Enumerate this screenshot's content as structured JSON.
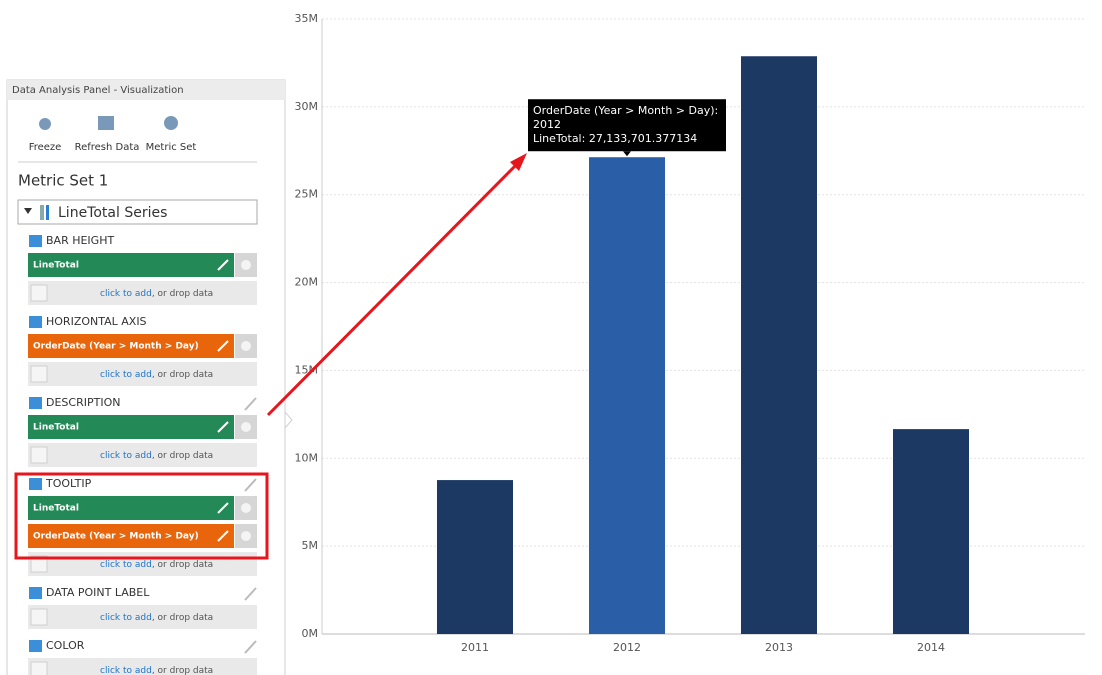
{
  "panel": {
    "header": "Data Analysis Panel - Visualization",
    "toolbar": [
      "Freeze",
      "Refresh Data",
      "Metric Set"
    ],
    "metric_set": "Metric Set 1",
    "series_dropdown": "LineTotal Series",
    "add_link": "click to add",
    "add_text": ", or drop data",
    "sections": [
      {
        "title": "BAR HEIGHT",
        "fields": [
          {
            "label": "LineTotal",
            "color": "#238a57"
          }
        ]
      },
      {
        "title": "HORIZONTAL AXIS",
        "fields": [
          {
            "label": "OrderDate (Year > Month > Day)",
            "color": "#e8650c"
          }
        ]
      },
      {
        "title": "DESCRIPTION",
        "fields": [
          {
            "label": "LineTotal",
            "color": "#238a57"
          }
        ]
      },
      {
        "title": "TOOLTIP",
        "fields": [
          {
            "label": "LineTotal",
            "color": "#238a57"
          },
          {
            "label": "OrderDate (Year > Month > Day)",
            "color": "#e8650c"
          }
        ]
      },
      {
        "title": "DATA POINT LABEL",
        "fields": []
      },
      {
        "title": "COLOR",
        "fields": []
      }
    ]
  },
  "chart_data": {
    "type": "bar",
    "categories": [
      "2011",
      "2012",
      "2013",
      "2014"
    ],
    "values": [
      8760000,
      27133701.377134,
      32880000,
      11660000
    ],
    "colors": [
      "#1c3963",
      "#2a5fa8",
      "#1c3963",
      "#1c3963"
    ],
    "ylim": [
      0,
      35000000
    ],
    "yticks": [
      {
        "value": 0,
        "label": "0M"
      },
      {
        "value": 5000000,
        "label": "5M"
      },
      {
        "value": 10000000,
        "label": "10M"
      },
      {
        "value": 15000000,
        "label": "15M"
      },
      {
        "value": 20000000,
        "label": "20M"
      },
      {
        "value": 25000000,
        "label": "25M"
      },
      {
        "value": 30000000,
        "label": "30M"
      },
      {
        "value": 35000000,
        "label": "35M"
      }
    ],
    "grid": true,
    "tooltip": {
      "category": 1,
      "lines": [
        "OrderDate (Year > Month > Day):",
        "2012",
        "LineTotal: 27,133,701.377134"
      ]
    }
  }
}
